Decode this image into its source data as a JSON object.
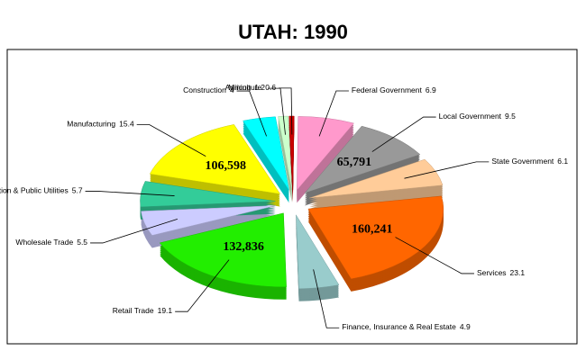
{
  "chart_data": {
    "type": "pie",
    "title": "UTAH:  1990",
    "categories": [
      "Manufacturing",
      "Construction",
      "Mining",
      "Agriculture",
      "Federal Government",
      "Local Government",
      "State Government",
      "Services",
      "Finance, Insurance & Real Estate",
      "Retail Trade",
      "Wholesale Trade",
      "Transportation & Public Utilities"
    ],
    "values": [
      15.4,
      4.0,
      1.2,
      0.6,
      6.9,
      9.5,
      6.1,
      23.1,
      4.9,
      19.1,
      5.5,
      5.7
    ],
    "colors": [
      "#ffff00",
      "#00ffff",
      "#ccffcc",
      "#cc0000",
      "#ff99cc",
      "#999999",
      "#ffcc99",
      "#ff6600",
      "#99cccc",
      "#22ee00",
      "#ccccff",
      "#33cc99"
    ],
    "count_labels": [
      "106,598",
      null,
      null,
      null,
      null,
      "65,791",
      null,
      "160,241",
      null,
      "132,836",
      null,
      null
    ]
  }
}
